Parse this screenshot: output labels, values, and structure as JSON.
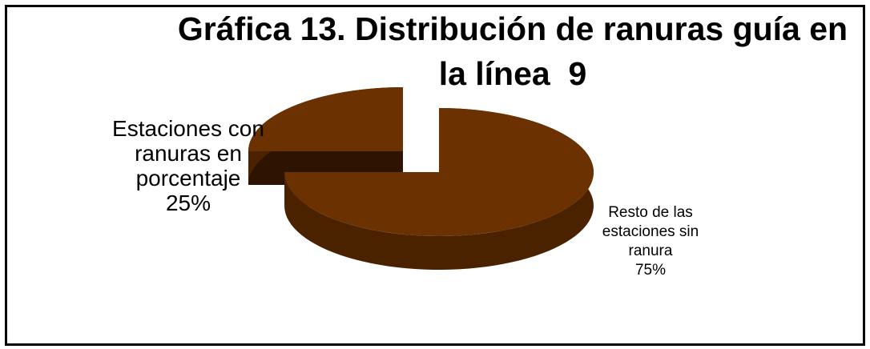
{
  "chart_data": {
    "type": "pie",
    "title": "Gráfica 13. Distribución de ranuras guía en la línea  9",
    "categories": [
      "Estaciones con ranuras en porcentaje",
      "Resto de las estaciones sin ranura"
    ],
    "values": [
      25,
      75
    ],
    "value_labels": [
      "25%",
      "75%"
    ],
    "color": "#6b3100"
  }
}
